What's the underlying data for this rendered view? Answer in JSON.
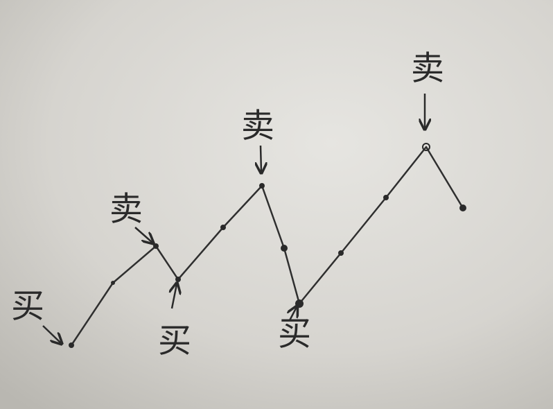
{
  "annotations": [
    "买",
    "卖",
    "买",
    "卖",
    "买",
    "卖"
  ]
}
